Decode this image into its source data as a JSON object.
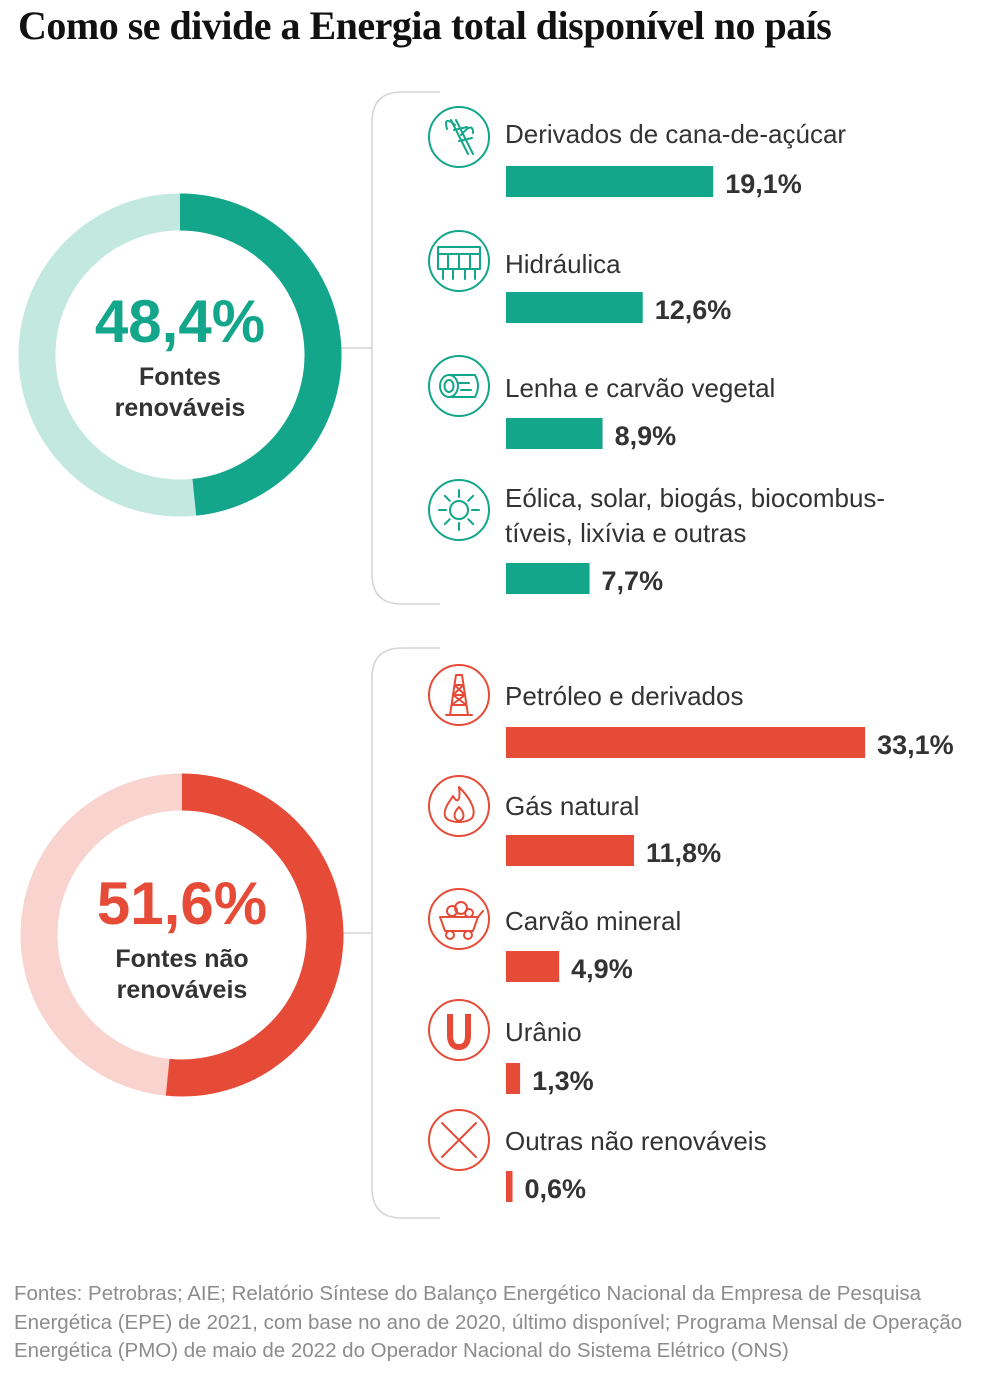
{
  "title": "Como se divide a Energia total disponível no país",
  "chart_data": [
    {
      "type": "pie",
      "donut": true,
      "value": 48.4,
      "value_label": "48,4%",
      "label_lines": [
        "Fontes",
        "renováveis"
      ],
      "color": "#13a68a",
      "track_color": "#c2e8e0"
    },
    {
      "type": "bar",
      "orientation": "horizontal",
      "color": "#13a68a",
      "categories": [
        "Derivados de cana-de-açúcar",
        "Hidráulica",
        "Lenha e carvão vegetal",
        "Eólica, solar, biogás, biocombustíveis, lixívia e outras"
      ],
      "label_lines": [
        [
          "Derivados de cana-de-açúcar"
        ],
        [
          "Hidráulica"
        ],
        [
          "Lenha e carvão vegetal"
        ],
        [
          "Eólica, solar, biogás, biocombus-",
          "tíveis, lixívia e outras"
        ]
      ],
      "icons": [
        "sugarcane-icon",
        "dam-icon",
        "firewood-icon",
        "sun-icon"
      ],
      "values": [
        19.1,
        12.6,
        8.9,
        7.7
      ],
      "value_labels": [
        "19,1%",
        "12,6%",
        "8,9%",
        "7,7%"
      ]
    },
    {
      "type": "pie",
      "donut": true,
      "value": 51.6,
      "value_label": "51,6%",
      "label_lines": [
        "Fontes não",
        "renováveis"
      ],
      "color": "#e54b36",
      "track_color": "#f9d3cd"
    },
    {
      "type": "bar",
      "orientation": "horizontal",
      "color": "#e54b36",
      "categories": [
        "Petróleo e derivados",
        "Gás natural",
        "Carvão mineral",
        "Urânio",
        "Outras não renováveis"
      ],
      "label_lines": [
        [
          "Petróleo e derivados"
        ],
        [
          "Gás natural"
        ],
        [
          "Carvão mineral"
        ],
        [
          "Urânio"
        ],
        [
          "Outras não renováveis"
        ]
      ],
      "icons": [
        "oil-derrick-icon",
        "flame-icon",
        "mine-cart-icon",
        "uranium-icon",
        "x-icon"
      ],
      "values": [
        33.1,
        11.8,
        4.9,
        1.3,
        0.6
      ],
      "value_labels": [
        "33,1%",
        "11,8%",
        "4,9%",
        "1,3%",
        "0,6%"
      ]
    }
  ],
  "sources": "Fontes: Petrobras; AIE; Relatório Síntese do Balanço Energético Nacional da Empresa de Pesquisa Energética (EPE) de 2021, com base no ano de 2020, último disponível; Programa Mensal de Operação Energética (PMO) de maio de 2022 do Operador Nacional do Sistema Elétrico (ONS)"
}
